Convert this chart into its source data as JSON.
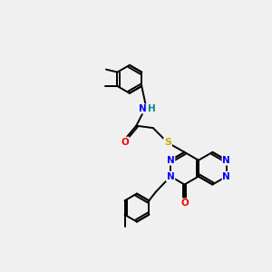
{
  "bg_color": "#f0f0f0",
  "atom_colors": {
    "C": "#000000",
    "N": "#0000ff",
    "O": "#ff0000",
    "S": "#ccaa00",
    "H": "#008888"
  },
  "bond_color": "#000000",
  "bond_width": 1.4,
  "figsize": [
    3.0,
    3.0
  ],
  "dpi": 100,
  "xlim": [
    0,
    10
  ],
  "ylim": [
    0,
    10
  ]
}
